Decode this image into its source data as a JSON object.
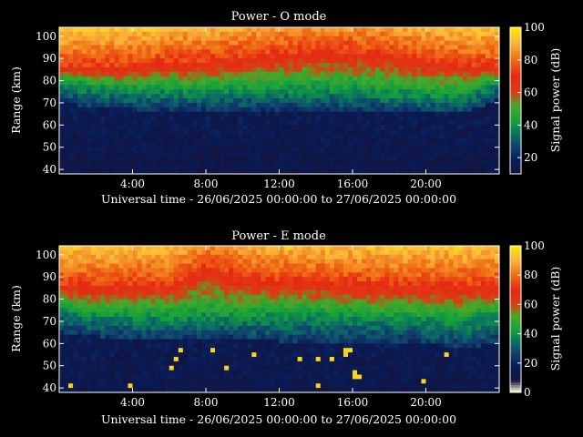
{
  "chart_data": [
    {
      "type": "heatmap",
      "title": "Power - O mode",
      "xlabel": "Universal time - 26/06/2025 00:00:00 to 27/06/2025 00:00:00",
      "ylabel": "Range (km)",
      "xlim": [
        "00:00",
        "24:00"
      ],
      "ylim": [
        38,
        104
      ],
      "x_ticks": [
        "4:00",
        "8:00",
        "12:00",
        "16:00",
        "20:00"
      ],
      "y_ticks": [
        40,
        50,
        60,
        70,
        80,
        90,
        100
      ],
      "colorbar": {
        "label": "Signal power (dB)",
        "range": [
          10,
          100
        ],
        "ticks": [
          20,
          40,
          60,
          80,
          100
        ]
      },
      "x_hours": [
        0,
        2,
        4,
        6,
        8,
        10,
        12,
        14,
        16,
        18,
        20,
        22,
        24
      ],
      "boundary_90dB_km": [
        86,
        86,
        86,
        88,
        89,
        90,
        92,
        93,
        93,
        92,
        89,
        87,
        86
      ],
      "boundary_40dB_km": [
        80,
        77,
        76,
        76,
        75,
        76,
        76,
        76,
        76,
        75,
        74,
        73,
        80
      ],
      "boundary_25dB_km": [
        70,
        68,
        67,
        67,
        67,
        67,
        67,
        67,
        67,
        66,
        66,
        65,
        72
      ]
    },
    {
      "type": "heatmap",
      "title": "Power - E mode",
      "xlabel": "Universal time - 26/06/2025 00:00:00 to 27/06/2025 00:00:00",
      "ylabel": "Range (km)",
      "xlim": [
        "00:00",
        "24:00"
      ],
      "ylim": [
        38,
        104
      ],
      "x_ticks": [
        "4:00",
        "8:00",
        "12:00",
        "16:00",
        "20:00"
      ],
      "y_ticks": [
        40,
        50,
        60,
        70,
        80,
        90,
        100
      ],
      "colorbar": {
        "label": "Signal power (dB)",
        "range": [
          0,
          100
        ],
        "ticks": [
          0,
          20,
          40,
          60,
          80,
          100
        ]
      },
      "x_hours": [
        0,
        2,
        4,
        6,
        8,
        10,
        12,
        14,
        16,
        18,
        20,
        22,
        24
      ],
      "boundary_90dB_km": [
        86,
        86,
        86,
        86,
        94,
        90,
        88,
        88,
        87,
        86,
        86,
        86,
        86
      ],
      "boundary_40dB_km": [
        76,
        73,
        73,
        72,
        73,
        72,
        73,
        73,
        72,
        72,
        71,
        70,
        74
      ],
      "boundary_25dB_km": [
        65,
        63,
        62,
        62,
        62,
        62,
        61,
        61,
        61,
        61,
        60,
        58,
        60
      ]
    }
  ],
  "colors": {
    "background": "#000000",
    "text": "#ffffff"
  }
}
